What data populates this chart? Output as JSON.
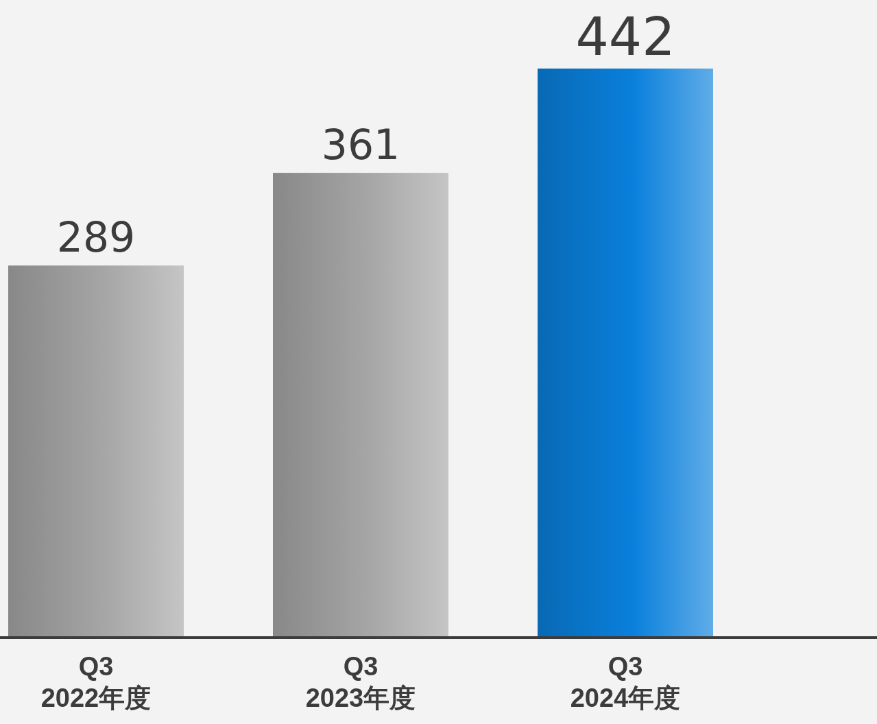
{
  "chart_data": {
    "type": "bar",
    "categories": [
      "Q3\n2022年度",
      "Q3\n2023年度",
      "Q3\n2024年度"
    ],
    "values": [
      289,
      361,
      442
    ],
    "colors": [
      "#a6a6a6",
      "#a6a6a6",
      "#0a80dc"
    ],
    "data_labels": true
  }
}
